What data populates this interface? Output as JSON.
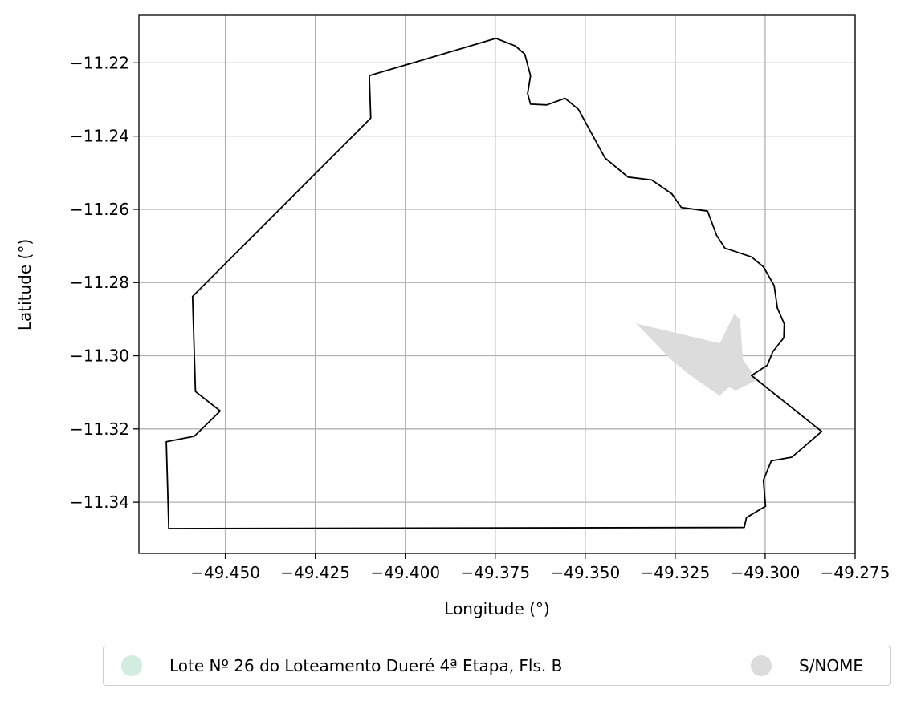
{
  "chart_data": {
    "type": "map",
    "xlabel": "Longitude (°)",
    "ylabel": "Latitude (°)",
    "xlim": [
      -49.474,
      -49.275
    ],
    "ylim": [
      -11.354,
      -11.207
    ],
    "grid": true,
    "x_ticks": [
      -49.45,
      -49.425,
      -49.4,
      -49.375,
      -49.35,
      -49.325,
      -49.3,
      -49.275
    ],
    "x_tick_labels": [
      "−49.450",
      "−49.425",
      "−49.400",
      "−49.375",
      "−49.350",
      "−49.325",
      "−49.300",
      "−49.275"
    ],
    "y_ticks": [
      -11.22,
      -11.24,
      -11.26,
      -11.28,
      -11.3,
      -11.32,
      -11.34
    ],
    "y_tick_labels": [
      "−11.22",
      "−11.24",
      "−11.26",
      "−11.28",
      "−11.30",
      "−11.32",
      "−11.34"
    ],
    "boundary_outline": {
      "color": "#000000",
      "points": [
        [
          -49.3748,
          -11.2133
        ],
        [
          -49.3694,
          -11.2154
        ],
        [
          -49.3668,
          -11.2176
        ],
        [
          -49.3652,
          -11.2235
        ],
        [
          -49.366,
          -11.2284
        ],
        [
          -49.3652,
          -11.2313
        ],
        [
          -49.3607,
          -11.2315
        ],
        [
          -49.3556,
          -11.2297
        ],
        [
          -49.3519,
          -11.2327
        ],
        [
          -49.3445,
          -11.246
        ],
        [
          -49.3381,
          -11.2512
        ],
        [
          -49.3315,
          -11.252
        ],
        [
          -49.3259,
          -11.2558
        ],
        [
          -49.3233,
          -11.2595
        ],
        [
          -49.316,
          -11.2605
        ],
        [
          -49.3135,
          -11.2671
        ],
        [
          -49.3112,
          -11.2706
        ],
        [
          -49.3038,
          -11.273
        ],
        [
          -49.3005,
          -11.2757
        ],
        [
          -49.2975,
          -11.2808
        ],
        [
          -49.2966,
          -11.287
        ],
        [
          -49.2947,
          -11.2913
        ],
        [
          -49.2948,
          -11.2951
        ],
        [
          -49.2979,
          -11.2989
        ],
        [
          -49.2994,
          -11.3026
        ],
        [
          -49.3038,
          -11.3054
        ],
        [
          -49.2843,
          -11.3207
        ],
        [
          -49.2926,
          -11.3277
        ],
        [
          -49.2983,
          -11.3287
        ],
        [
          -49.3005,
          -11.334
        ],
        [
          -49.2999,
          -11.3411
        ],
        [
          -49.3052,
          -11.3442
        ],
        [
          -49.3058,
          -11.3469
        ],
        [
          -49.4657,
          -11.3472
        ],
        [
          -49.4664,
          -11.3235
        ],
        [
          -49.4586,
          -11.322
        ],
        [
          -49.4514,
          -11.3151
        ],
        [
          -49.4583,
          -11.3098
        ],
        [
          -49.4591,
          -11.2838
        ],
        [
          -49.4096,
          -11.2351
        ],
        [
          -49.41,
          -11.2235
        ]
      ]
    },
    "regions": [
      {
        "name": "Lote Nº 26 do Loteamento Dueré 4ª Etapa, Fls. B",
        "color": "#d0ede0",
        "points": []
      },
      {
        "name": "S/NOME",
        "color": "#dcdcdc",
        "points": [
          [
            -49.3359,
            -11.2912
          ],
          [
            -49.3126,
            -11.2966
          ],
          [
            -49.3086,
            -11.2886
          ],
          [
            -49.307,
            -11.2901
          ],
          [
            -49.3062,
            -11.301
          ],
          [
            -49.3034,
            -11.305
          ],
          [
            -49.3005,
            -11.3076
          ],
          [
            -49.3019,
            -11.3065
          ],
          [
            -49.3082,
            -11.3095
          ],
          [
            -49.31,
            -11.3086
          ],
          [
            -49.3124,
            -11.3106
          ],
          [
            -49.3126,
            -11.311
          ],
          [
            -49.321,
            -11.3052
          ],
          [
            -49.326,
            -11.3012
          ]
        ]
      }
    ],
    "legend": {
      "placement": "bottom",
      "entries": [
        {
          "label": "Lote Nº 26 do Loteamento Dueré 4ª Etapa, Fls. B",
          "color": "#d0ede0"
        },
        {
          "label": "S/NOME",
          "color": "#dcdcdc"
        }
      ]
    }
  }
}
